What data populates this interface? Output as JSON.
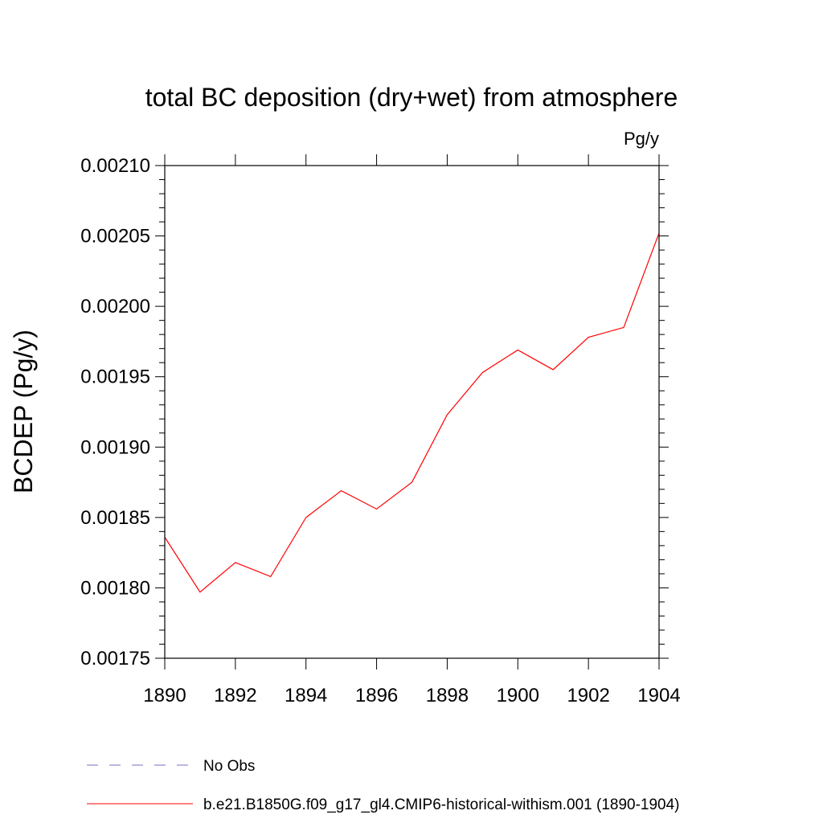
{
  "chart_data": {
    "type": "line",
    "title": "total BC deposition (dry+wet) from atmosphere",
    "units_label": "Pg/y",
    "xlabel": "",
    "ylabel": "BCDEP  (Pg/y)",
    "xlim": [
      1890,
      1904
    ],
    "ylim": [
      0.00175,
      0.0021
    ],
    "x_ticks": [
      1890,
      1892,
      1894,
      1896,
      1898,
      1900,
      1902,
      1904
    ],
    "x_tick_labels": [
      "1890",
      "1892",
      "1894",
      "1896",
      "1898",
      "1900",
      "1902",
      "1904"
    ],
    "y_ticks": [
      0.00175,
      0.0018,
      0.00185,
      0.0019,
      0.00195,
      0.002,
      0.00205,
      0.0021
    ],
    "y_tick_labels": [
      "0.00175",
      "0.00180",
      "0.00185",
      "0.00190",
      "0.00195",
      "0.00200",
      "0.00205",
      "0.00210"
    ],
    "grid": false,
    "legend_position": "bottom",
    "x": [
      1890,
      1891,
      1892,
      1893,
      1894,
      1895,
      1896,
      1897,
      1898,
      1899,
      1900,
      1901,
      1902,
      1903,
      1904
    ],
    "series": [
      {
        "name": "b.e21.B1850G.f09_g17_gl4.CMIP6-historical-withism.001 (1890-1904)",
        "color": "#ff0000",
        "style": "solid",
        "values": [
          0.001836,
          0.001797,
          0.001818,
          0.001808,
          0.00185,
          0.001869,
          0.001856,
          0.001875,
          0.001923,
          0.001953,
          0.001969,
          0.001955,
          0.001978,
          0.001985,
          0.002052
        ]
      }
    ],
    "legend": [
      {
        "label": "No Obs",
        "color": "#7a6fc0",
        "style": "dashed"
      },
      {
        "label": "b.e21.B1850G.f09_g17_gl4.CMIP6-historical-withism.001 (1890-1904)",
        "color": "#ff0000",
        "style": "solid"
      }
    ]
  }
}
